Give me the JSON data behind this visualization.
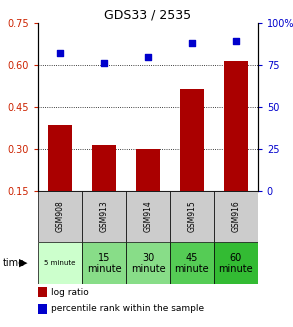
{
  "title": "GDS33 / 2535",
  "samples": [
    "GSM908",
    "GSM913",
    "GSM914",
    "GSM915",
    "GSM916"
  ],
  "time_labels_line1": [
    "5 minute",
    "15",
    "30",
    "45",
    "60"
  ],
  "time_labels_line2": [
    "",
    "minute",
    "minute",
    "minute",
    "minute"
  ],
  "log_ratios": [
    0.385,
    0.315,
    0.3,
    0.515,
    0.615
  ],
  "percentile_ranks": [
    82,
    76,
    80,
    88,
    89
  ],
  "left_ylim": [
    0.15,
    0.75
  ],
  "right_ylim": [
    0,
    100
  ],
  "left_yticks": [
    0.15,
    0.3,
    0.45,
    0.6,
    0.75
  ],
  "left_ytick_labels": [
    "0.15",
    "0.30",
    "0.45",
    "0.60",
    "0.75"
  ],
  "right_yticks": [
    0,
    25,
    50,
    75,
    100
  ],
  "right_ytick_labels": [
    "0",
    "25",
    "50",
    "75",
    "100%"
  ],
  "bar_color": "#aa0000",
  "dot_color": "#0000cc",
  "bg_color": "#ffffff",
  "sample_row_color": "#cccccc",
  "time_colors": [
    "#ccffcc",
    "#88dd88",
    "#88dd88",
    "#55cc55",
    "#33bb33"
  ],
  "bar_width": 0.55,
  "grid_dotted_vals": [
    0.3,
    0.45,
    0.6
  ],
  "title_fontsize": 9,
  "ytick_fontsize": 7,
  "sample_fontsize": 5.5,
  "time_fontsize_small": 5,
  "time_fontsize": 7
}
